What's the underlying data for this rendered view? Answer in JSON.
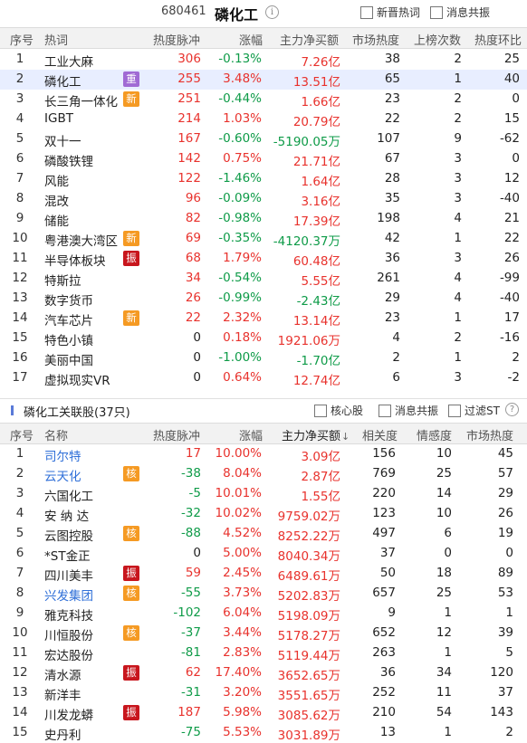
{
  "header": {
    "code": "680461",
    "name": "磷化工",
    "checkboxes": [
      "新晋热词",
      "消息共振"
    ]
  },
  "table1": {
    "columns": [
      "序号",
      "热词",
      "热度脉冲",
      "涨幅",
      "主力净买额",
      "市场热度",
      "上榜次数",
      "热度环比"
    ],
    "rows": [
      {
        "idx": "1",
        "name": "工业大麻",
        "badge": "",
        "pulse": "306",
        "chg": "-0.13%",
        "net": "7.26亿",
        "heat": "38",
        "times": "2",
        "ratio": "25"
      },
      {
        "idx": "2",
        "name": "磷化工",
        "badge": "重",
        "pulse": "255",
        "chg": "3.48%",
        "net": "13.51亿",
        "heat": "65",
        "times": "1",
        "ratio": "40"
      },
      {
        "idx": "3",
        "name": "长三角一体化",
        "badge": "新",
        "pulse": "251",
        "chg": "-0.44%",
        "net": "1.66亿",
        "heat": "23",
        "times": "2",
        "ratio": "0"
      },
      {
        "idx": "4",
        "name": "IGBT",
        "badge": "",
        "pulse": "214",
        "chg": "1.03%",
        "net": "20.79亿",
        "heat": "22",
        "times": "2",
        "ratio": "15"
      },
      {
        "idx": "5",
        "name": "双十一",
        "badge": "",
        "pulse": "167",
        "chg": "-0.60%",
        "net": "-5190.05万",
        "heat": "107",
        "times": "9",
        "ratio": "-62"
      },
      {
        "idx": "6",
        "name": "磷酸铁锂",
        "badge": "",
        "pulse": "142",
        "chg": "0.75%",
        "net": "21.71亿",
        "heat": "67",
        "times": "3",
        "ratio": "0"
      },
      {
        "idx": "7",
        "name": "风能",
        "badge": "",
        "pulse": "122",
        "chg": "-1.46%",
        "net": "1.64亿",
        "heat": "28",
        "times": "3",
        "ratio": "12"
      },
      {
        "idx": "8",
        "name": "混改",
        "badge": "",
        "pulse": "96",
        "chg": "-0.09%",
        "net": "3.16亿",
        "heat": "35",
        "times": "3",
        "ratio": "-40"
      },
      {
        "idx": "9",
        "name": "储能",
        "badge": "",
        "pulse": "82",
        "chg": "-0.98%",
        "net": "17.39亿",
        "heat": "198",
        "times": "4",
        "ratio": "21"
      },
      {
        "idx": "10",
        "name": "粤港澳大湾区",
        "badge": "新",
        "pulse": "69",
        "chg": "-0.35%",
        "net": "-4120.37万",
        "heat": "42",
        "times": "1",
        "ratio": "22"
      },
      {
        "idx": "11",
        "name": "半导体板块",
        "badge": "振",
        "pulse": "68",
        "chg": "1.79%",
        "net": "60.48亿",
        "heat": "36",
        "times": "3",
        "ratio": "26"
      },
      {
        "idx": "12",
        "name": "特斯拉",
        "badge": "",
        "pulse": "34",
        "chg": "-0.54%",
        "net": "5.55亿",
        "heat": "261",
        "times": "4",
        "ratio": "-99"
      },
      {
        "idx": "13",
        "name": "数字货币",
        "badge": "",
        "pulse": "26",
        "chg": "-0.99%",
        "net": "-2.43亿",
        "heat": "29",
        "times": "4",
        "ratio": "-40"
      },
      {
        "idx": "14",
        "name": "汽车芯片",
        "badge": "新",
        "pulse": "22",
        "chg": "2.32%",
        "net": "13.14亿",
        "heat": "23",
        "times": "1",
        "ratio": "17"
      },
      {
        "idx": "15",
        "name": "特色小镇",
        "badge": "",
        "pulse": "0",
        "chg": "0.18%",
        "net": "1921.06万",
        "heat": "4",
        "times": "2",
        "ratio": "-16"
      },
      {
        "idx": "16",
        "name": "美丽中国",
        "badge": "",
        "pulse": "0",
        "chg": "-1.00%",
        "net": "-1.70亿",
        "heat": "2",
        "times": "1",
        "ratio": "2"
      },
      {
        "idx": "17",
        "name": "虚拟现实VR",
        "badge": "",
        "pulse": "0",
        "chg": "0.64%",
        "net": "12.74亿",
        "heat": "6",
        "times": "3",
        "ratio": "-2"
      }
    ]
  },
  "section2": {
    "title": "磷化工关联股(37只)",
    "checkboxes": [
      "核心股",
      "消息共振",
      "过滤ST"
    ]
  },
  "table2": {
    "columns": [
      "序号",
      "名称",
      "热度脉冲",
      "涨幅",
      "主力净买额",
      "相关度",
      "情感度",
      "市场热度"
    ],
    "sort_arrow": "↓",
    "rows": [
      {
        "idx": "1",
        "name": "司尔特",
        "nameColor": "blue",
        "badge": "",
        "pulse": "17",
        "chg": "10.00%",
        "net": "3.09亿",
        "rel": "156",
        "emo": "10",
        "heat": "45"
      },
      {
        "idx": "2",
        "name": "云天化",
        "nameColor": "blue",
        "badge": "核",
        "pulse": "-38",
        "chg": "8.04%",
        "net": "2.87亿",
        "rel": "769",
        "emo": "25",
        "heat": "57"
      },
      {
        "idx": "3",
        "name": "六国化工",
        "nameColor": "",
        "badge": "",
        "pulse": "-5",
        "chg": "10.01%",
        "net": "1.55亿",
        "rel": "220",
        "emo": "14",
        "heat": "29"
      },
      {
        "idx": "4",
        "name": "安 纳 达",
        "nameColor": "",
        "badge": "",
        "pulse": "-32",
        "chg": "10.02%",
        "net": "9759.02万",
        "rel": "123",
        "emo": "10",
        "heat": "26"
      },
      {
        "idx": "5",
        "name": "云图控股",
        "nameColor": "",
        "badge": "核",
        "pulse": "-88",
        "chg": "4.52%",
        "net": "8252.22万",
        "rel": "497",
        "emo": "6",
        "heat": "19"
      },
      {
        "idx": "6",
        "name": "*ST金正",
        "nameColor": "",
        "badge": "",
        "pulse": "0",
        "chg": "5.00%",
        "net": "8040.34万",
        "rel": "37",
        "emo": "0",
        "heat": "0"
      },
      {
        "idx": "7",
        "name": "四川美丰",
        "nameColor": "",
        "badge": "振",
        "pulse": "59",
        "chg": "2.45%",
        "net": "6489.61万",
        "rel": "50",
        "emo": "18",
        "heat": "89"
      },
      {
        "idx": "8",
        "name": "兴发集团",
        "nameColor": "blue",
        "badge": "核",
        "pulse": "-55",
        "chg": "3.73%",
        "net": "5202.83万",
        "rel": "657",
        "emo": "25",
        "heat": "53"
      },
      {
        "idx": "9",
        "name": "雅克科技",
        "nameColor": "",
        "badge": "",
        "pulse": "-102",
        "chg": "6.04%",
        "net": "5198.09万",
        "rel": "9",
        "emo": "1",
        "heat": "1"
      },
      {
        "idx": "10",
        "name": "川恒股份",
        "nameColor": "",
        "badge": "核",
        "pulse": "-37",
        "chg": "3.44%",
        "net": "5178.27万",
        "rel": "652",
        "emo": "12",
        "heat": "39"
      },
      {
        "idx": "11",
        "name": "宏达股份",
        "nameColor": "",
        "badge": "",
        "pulse": "-81",
        "chg": "2.83%",
        "net": "5119.44万",
        "rel": "263",
        "emo": "1",
        "heat": "5"
      },
      {
        "idx": "12",
        "name": "清水源",
        "nameColor": "",
        "badge": "振",
        "pulse": "62",
        "chg": "17.40%",
        "net": "3652.65万",
        "rel": "36",
        "emo": "34",
        "heat": "120"
      },
      {
        "idx": "13",
        "name": "新洋丰",
        "nameColor": "",
        "badge": "",
        "pulse": "-31",
        "chg": "3.20%",
        "net": "3551.65万",
        "rel": "252",
        "emo": "11",
        "heat": "37"
      },
      {
        "idx": "14",
        "name": "川发龙蟒",
        "nameColor": "",
        "badge": "振",
        "pulse": "187",
        "chg": "5.98%",
        "net": "3085.62万",
        "rel": "210",
        "emo": "54",
        "heat": "143"
      },
      {
        "idx": "15",
        "name": "史丹利",
        "nameColor": "",
        "badge": "",
        "pulse": "-75",
        "chg": "5.53%",
        "net": "3031.89万",
        "rel": "13",
        "emo": "1",
        "heat": "2"
      }
    ]
  },
  "colors": {
    "up": "#e8322d",
    "down": "#0e9b48",
    "link": "#2f6fd8",
    "badge_new": "#f59a23",
    "badge_key": "#a06ad4",
    "badge_vib": "#c8161d",
    "badge_core": "#f59a23",
    "selected_row": "#e8eeff"
  }
}
